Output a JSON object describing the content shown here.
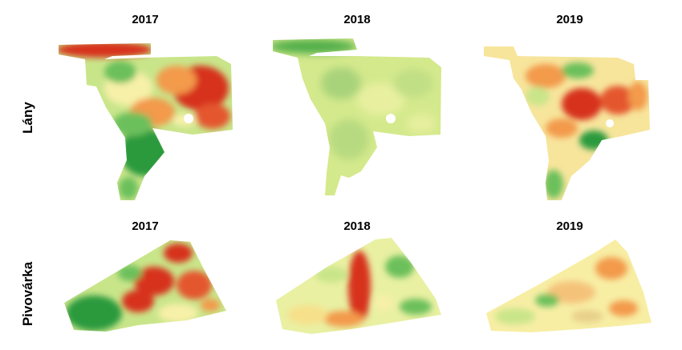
{
  "rows": [
    {
      "label": "Lány",
      "years": [
        "2017",
        "2018",
        "2019"
      ]
    },
    {
      "label": "Pivovárka",
      "years": [
        "2017",
        "2018",
        "2019"
      ]
    }
  ],
  "colors": {
    "red": "#d7301f",
    "orange": "#f39a4b",
    "yellow": "#f7f0a8",
    "light_green": "#c9e58a",
    "green": "#6cc05b",
    "dark_green": "#2a9a3c",
    "background": "#ffffff"
  }
}
